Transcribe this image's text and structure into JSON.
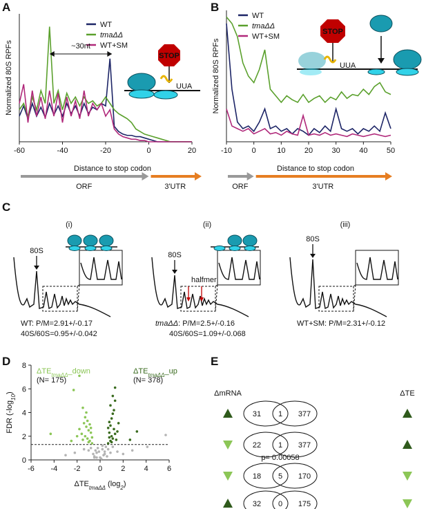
{
  "chart_data": [
    {
      "type": "line",
      "label": "A",
      "ylabel": "Normalized 80S RPFs",
      "xlabel": "Distance to stop codon",
      "x": [
        -60,
        -58,
        -56,
        -54,
        -52,
        -50,
        -48,
        -46,
        -44,
        -42,
        -40,
        -38,
        -36,
        -34,
        -32,
        -30,
        -28,
        -26,
        -24,
        -22,
        -20,
        -18,
        -16,
        -14,
        -12,
        -10,
        -8,
        -6,
        -4,
        -2,
        0,
        2,
        4,
        6,
        8,
        10,
        12,
        14,
        16,
        18,
        20
      ],
      "xlim": [
        -60,
        20
      ],
      "xticks": [
        -60,
        -40,
        -20,
        0,
        20
      ],
      "ylim": [
        0,
        1
      ],
      "series": [
        {
          "name": "WT",
          "color": "#1c2466",
          "values": [
            0.2,
            0.28,
            0.18,
            0.3,
            0.2,
            0.27,
            0.19,
            0.3,
            0.21,
            0.28,
            0.2,
            0.3,
            0.22,
            0.28,
            0.2,
            0.3,
            0.22,
            0.27,
            0.25,
            0.3,
            0.28,
            0.65,
            0.12,
            0.08,
            0.06,
            0.05,
            0.05,
            0.04,
            0.04,
            0.03,
            0.02,
            0.01,
            0,
            0,
            0,
            0,
            0,
            0,
            0,
            0,
            0
          ]
        },
        {
          "name": "tmaΔΔ",
          "color": "#5aa02c",
          "values": [
            0.25,
            0.3,
            0.2,
            0.35,
            0.25,
            0.4,
            0.3,
            0.9,
            0.3,
            0.4,
            0.25,
            0.38,
            0.3,
            0.35,
            0.28,
            0.35,
            0.3,
            0.32,
            0.28,
            0.3,
            0.35,
            0.3,
            0.25,
            0.22,
            0.2,
            0.18,
            0.15,
            0.1,
            0.08,
            0.06,
            0.05,
            0.04,
            0.03,
            0.02,
            0.01,
            0,
            0,
            0,
            0,
            0,
            0
          ]
        },
        {
          "name": "WT+SM",
          "color": "#b0287a",
          "values": [
            0.3,
            0.45,
            0.15,
            0.4,
            0.2,
            0.35,
            0.18,
            0.4,
            0.2,
            0.38,
            0.15,
            0.35,
            0.2,
            0.32,
            0.18,
            0.4,
            0.2,
            0.3,
            0.25,
            0.3,
            0.2,
            0.25,
            0.1,
            0.06,
            0.04,
            0.03,
            0.02,
            0.02,
            0.01,
            0.01,
            0,
            0,
            0,
            0,
            0,
            0,
            0,
            0,
            0,
            0,
            0
          ]
        }
      ],
      "annotations": {
        "spacing": "~30nt",
        "stop": "STOP",
        "codon": "UUA",
        "orf": "ORF",
        "utr": "3'UTR"
      }
    },
    {
      "type": "line",
      "label": "B",
      "ylabel": "Normalized 80S RPFs",
      "xlabel": "Distance to stop codon",
      "x": [
        -10,
        -8,
        -6,
        -4,
        -2,
        0,
        2,
        4,
        6,
        8,
        10,
        12,
        14,
        16,
        18,
        20,
        22,
        24,
        26,
        28,
        30,
        32,
        34,
        36,
        38,
        40,
        42,
        44,
        46,
        48,
        50
      ],
      "xlim": [
        -10,
        50
      ],
      "xticks": [
        -10,
        0,
        10,
        20,
        30,
        40,
        50
      ],
      "ylim": [
        0,
        1
      ],
      "series": [
        {
          "name": "WT",
          "color": "#1c2466",
          "values": [
            0.9,
            0.4,
            0.15,
            0.1,
            0.12,
            0.08,
            0.15,
            0.25,
            0.1,
            0.12,
            0.08,
            0.1,
            0.06,
            0.1,
            0.08,
            0.05,
            0.1,
            0.07,
            0.12,
            0.08,
            0.25,
            0.1,
            0.08,
            0.1,
            0.06,
            0.1,
            0.08,
            0.12,
            0.08,
            0.22,
            0.1
          ]
        },
        {
          "name": "tmaΔΔ",
          "color": "#5aa02c",
          "values": [
            0.95,
            0.9,
            0.8,
            0.6,
            0.5,
            0.45,
            0.55,
            0.7,
            0.4,
            0.35,
            0.3,
            0.35,
            0.32,
            0.3,
            0.36,
            0.3,
            0.33,
            0.35,
            0.3,
            0.34,
            0.32,
            0.38,
            0.33,
            0.36,
            0.35,
            0.4,
            0.36,
            0.42,
            0.45,
            0.38,
            0.36
          ]
        },
        {
          "name": "WT+SM",
          "color": "#b0287a",
          "values": [
            0.25,
            0.12,
            0.1,
            0.08,
            0.1,
            0.06,
            0.08,
            0.1,
            0.06,
            0.07,
            0.05,
            0.08,
            0.06,
            0.05,
            0.2,
            0.05,
            0.06,
            0.05,
            0.07,
            0.05,
            0.06,
            0.05,
            0.04,
            0.06,
            0.05,
            0.04,
            0.05,
            0.06,
            0.05,
            0.04,
            0.05
          ]
        }
      ],
      "annotations": {
        "stop": "STOP",
        "codon": "UUA",
        "orf": "ORF",
        "utr": "3'UTR"
      }
    },
    {
      "type": "scatter",
      "label": "D",
      "ylabel": [
        "FDR (-log",
        "10",
        ")"
      ],
      "xlabel": [
        "ΔTE",
        "tmaΔΔ",
        " (log",
        "2",
        ")"
      ],
      "xlim": [
        -6,
        6
      ],
      "xticks": [
        -6,
        -4,
        -2,
        0,
        2,
        4,
        6
      ],
      "ylim": [
        0,
        8
      ],
      "yticks": [
        0,
        2,
        4,
        6,
        8
      ],
      "hline": 1.3,
      "series": [
        {
          "color": "#b4b4b4",
          "x": [
            -0.5,
            -0.3,
            0,
            0.2,
            0.4,
            -0.2,
            0.1,
            0.3,
            -0.4,
            0.5,
            -0.1,
            0.6,
            -0.6,
            0.2,
            -0.3,
            0.4,
            0.7,
            -0.8,
            0.9,
            -0.5,
            1.1,
            -1.0,
            1.5,
            -1.4,
            2.0,
            -2.2,
            4.1,
            5.7,
            -3.0,
            2.8
          ],
          "y": [
            0.3,
            0.6,
            0.2,
            0.9,
            0.5,
            1.0,
            0.1,
            0.4,
            0.8,
            1.1,
            0.7,
            0.3,
            0.5,
            1.2,
            0.2,
            0.7,
            0.9,
            1.0,
            0.6,
            0.2,
            1.1,
            0.8,
            0.7,
            0.9,
            0.5,
            0.6,
            1.1,
            2.1,
            0.4,
            0.8
          ]
        },
        {
          "name": [
            "ΔTE",
            "tmaΔΔ",
            "_down"
          ],
          "n_label": "(N= 175)",
          "color": "#8cc657",
          "x": [
            -0.7,
            -0.9,
            -1.1,
            -1.3,
            -0.8,
            -1.0,
            -1.2,
            -1.5,
            -0.9,
            -1.1,
            -1.6,
            -0.7,
            -1.3,
            -1.8,
            -1.0,
            -1.4,
            -2.0,
            -1.2,
            -2.3,
            -1.8,
            -4.3,
            -2.5,
            -1.5,
            -0.8
          ],
          "y": [
            1.4,
            1.6,
            1.8,
            2.0,
            2.3,
            2.5,
            2.8,
            1.7,
            3.0,
            3.3,
            2.2,
            1.9,
            3.6,
            2.6,
            1.5,
            3.1,
            2.0,
            4.0,
            5.9,
            7.1,
            2.2,
            1.6,
            4.4,
            2.7
          ]
        },
        {
          "name": [
            "ΔTE",
            "tmaΔΔ",
            "_up"
          ],
          "n_label": "(N= 378)",
          "color": "#3a6b1f",
          "x": [
            0.7,
            0.9,
            1.0,
            0.8,
            1.1,
            1.2,
            0.9,
            1.3,
            0.8,
            1.0,
            1.4,
            1.1,
            0.7,
            1.2,
            1.5,
            0.9,
            1.0,
            1.3,
            1.6,
            1.3,
            3.2,
            2.6,
            1.1,
            0.8
          ],
          "y": [
            1.4,
            1.6,
            2.0,
            2.3,
            1.8,
            2.6,
            2.9,
            2.2,
            3.2,
            3.5,
            1.7,
            3.9,
            2.7,
            4.2,
            2.4,
            4.6,
            1.5,
            5.0,
            3.1,
            6.1,
            2.4,
            1.7,
            5.4,
            1.9
          ]
        }
      ]
    }
  ],
  "panel_c": {
    "label": "C",
    "profiles": [
      {
        "title": "(i)",
        "peak": "80S",
        "caption": [
          "WT: P/M=2.91+/-0.17",
          "40S/60S=0.95+/-0.042"
        ]
      },
      {
        "title": "(ii)",
        "peak": "80S",
        "halfmer": "halfmer",
        "caption": [
          "tmaΔΔ",
          ": P/M=2.5+/-0.16",
          "40S/60S=1.09+/-0.068"
        ]
      },
      {
        "title": "(iii)",
        "peak": "80S",
        "caption": [
          "WT+SM: P/M=2.31+/-0.12"
        ]
      }
    ]
  },
  "panel_e": {
    "label": "E",
    "left_header": "ΔmRNA",
    "right_header": "ΔTE",
    "p_value": "p= 0.00058",
    "rows": [
      [
        "31",
        "1",
        "377"
      ],
      [
        "22",
        "1",
        "377"
      ],
      [
        "18",
        "5",
        "170"
      ],
      [
        "32",
        "0",
        "175"
      ]
    ]
  }
}
